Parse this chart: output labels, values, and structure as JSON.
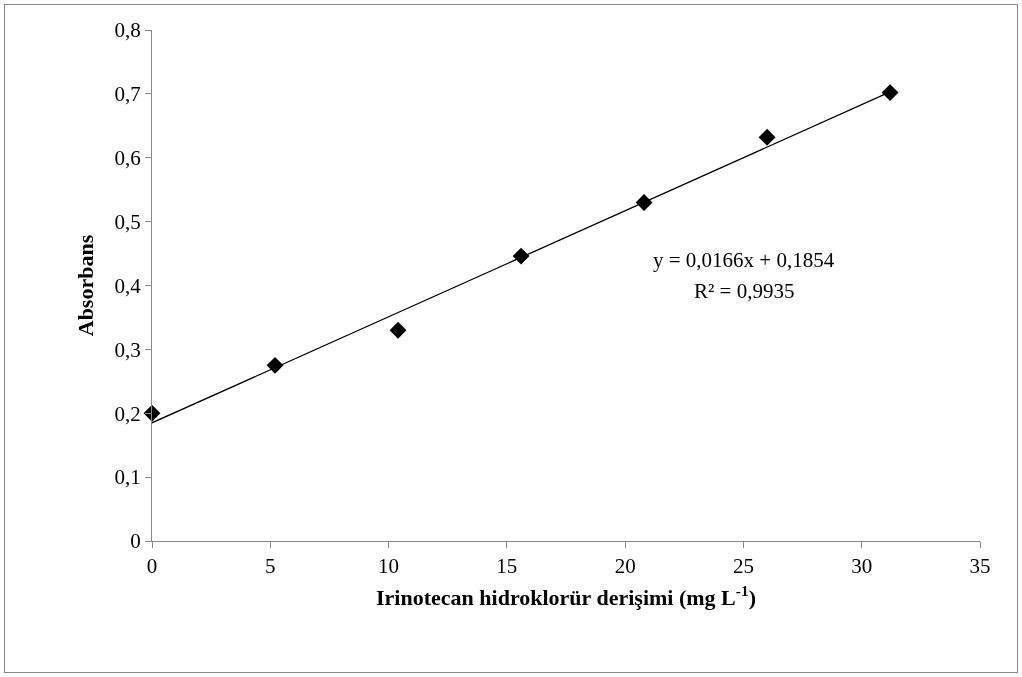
{
  "chart_data": {
    "type": "scatter",
    "xlabel": "Irinotecan hidroklorür derişimi (mg L$^{-1}$)",
    "ylabel": "Absorbans",
    "series": [
      {
        "color": "#000000",
        "marker": "diamond",
        "x": [
          0,
          5.2,
          10.4,
          15.6,
          20.8,
          26,
          31.2
        ],
        "values": [
          0.2,
          0.275,
          0.33,
          0.446,
          0.53,
          0.632,
          0.702
        ]
      },
      {
        "type": "line",
        "color": "#000000",
        "line_style": "solid",
        "x": [
          0,
          31.2
        ],
        "values": [
          0.185,
          0.703
        ]
      }
    ],
    "annotations": [
      "y = 0,0166x + 0,1854",
      "R² = 0,9935"
    ],
    "xlim": [
      0,
      35
    ],
    "xticks": [
      0,
      5,
      10,
      15,
      20,
      25,
      30,
      35
    ],
    "ylim": [
      0,
      0.8
    ],
    "yticks": [
      0,
      {
        "value": 0.1,
        "label": "0,1"
      },
      {
        "value": 0.2,
        "label": "0,2"
      },
      {
        "value": 0.3,
        "label": "0,3"
      },
      {
        "value": 0.4,
        "label": "0,4"
      },
      {
        "value": 0.5,
        "label": "0,5"
      },
      {
        "value": 0.6,
        "label": "0,6"
      },
      {
        "value": 0.7,
        "label": "0,7"
      },
      {
        "value": 0.8,
        "label": "0,8"
      }
    ],
    "grid": false,
    "legend": false
  }
}
